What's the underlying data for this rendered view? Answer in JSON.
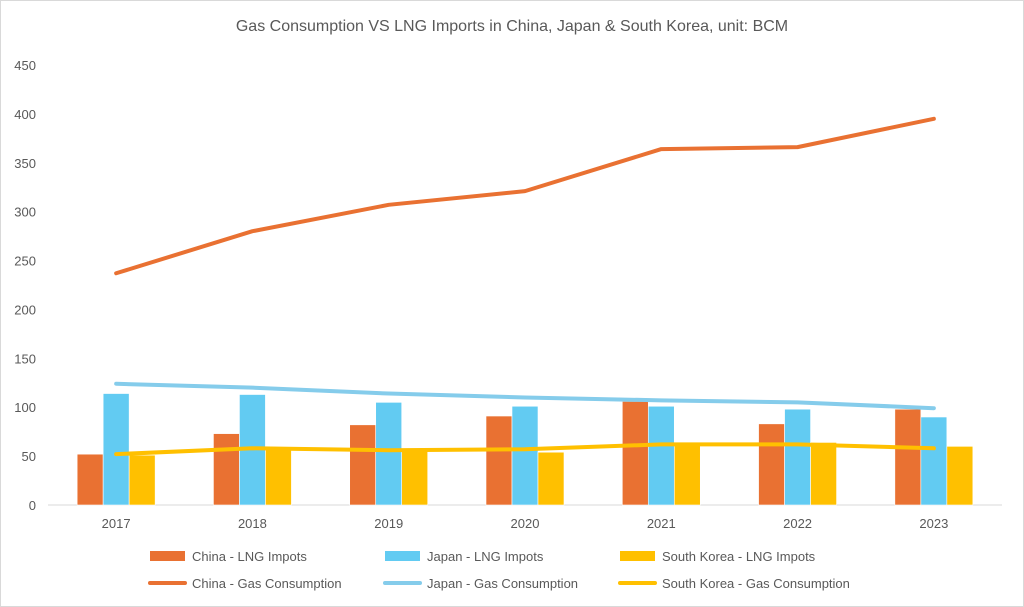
{
  "chart_data": {
    "type": "bar+line",
    "title": "Gas Consumption VS LNG Imports in China, Japan & South Korea, unit: BCM",
    "xlabel": "",
    "ylabel": "",
    "ylim": [
      0,
      450
    ],
    "yticks": [
      0,
      50,
      100,
      150,
      200,
      250,
      300,
      350,
      400,
      450
    ],
    "grid": false,
    "legend": "bottom",
    "categories": [
      "2017",
      "2018",
      "2019",
      "2020",
      "2021",
      "2022",
      "2023"
    ],
    "bar_series": [
      {
        "name": "China - LNG Impots",
        "color": "#E97132",
        "values": [
          52,
          73,
          82,
          91,
          106,
          83,
          98
        ]
      },
      {
        "name": "Japan - LNG Impots",
        "color": "#62CBF2",
        "values": [
          114,
          113,
          105,
          101,
          101,
          98,
          90
        ]
      },
      {
        "name": "South Korea - LNG Impots",
        "color": "#FFC000",
        "values": [
          51,
          59,
          57,
          54,
          61,
          64,
          60
        ]
      }
    ],
    "line_series": [
      {
        "name": "China - Gas Consumption",
        "color": "#E97132",
        "values": [
          237,
          280,
          307,
          321,
          364,
          366,
          395
        ]
      },
      {
        "name": "Japan - Gas Consumption",
        "color": "#85CCEB",
        "values": [
          124,
          120,
          114,
          110,
          107,
          105,
          99
        ]
      },
      {
        "name": "South Korea - Gas Consumption",
        "color": "#FFC000",
        "values": [
          52,
          58,
          56,
          57,
          62,
          62,
          58
        ]
      }
    ]
  }
}
